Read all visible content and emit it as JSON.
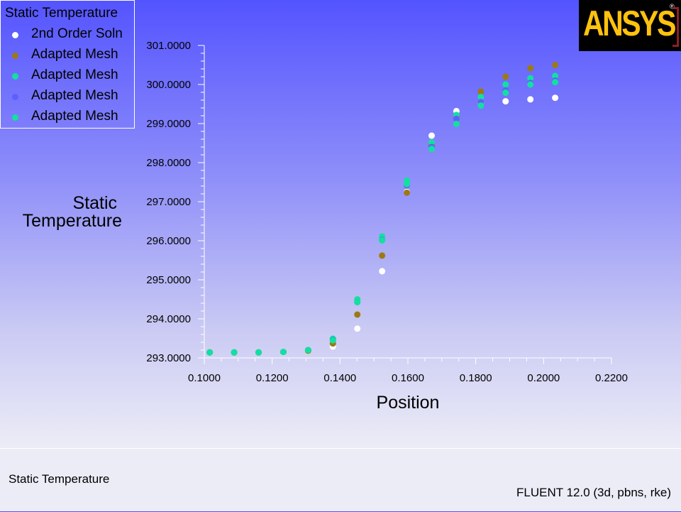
{
  "legend": {
    "title": "Static Temperature",
    "items": [
      {
        "label": "2nd Order Soln",
        "color": "#ffffff"
      },
      {
        "label": "Adapted Mesh",
        "color": "#9c7a12"
      },
      {
        "label": "Adapted Mesh",
        "color": "#12e0a0"
      },
      {
        "label": "Adapted Mesh",
        "color": "#5c60ff"
      },
      {
        "label": "Adapted Mesh",
        "color": "#12e0a0"
      }
    ]
  },
  "logo": {
    "text": "ANSYS",
    "mark": "®"
  },
  "footer": {
    "left_text": "Static Temperature",
    "right_text": "FLUENT 12.0 (3d, pbns, rke)"
  },
  "chart_data": {
    "type": "scatter",
    "xlabel": "Position",
    "ylabel": [
      "Static",
      "Temperature"
    ],
    "xlim": [
      0.1,
      0.22
    ],
    "ylim": [
      293.0,
      301.0
    ],
    "xticks": [
      "0.1000",
      "0.1200",
      "0.1400",
      "0.1600",
      "0.1800",
      "0.2000",
      "0.2200"
    ],
    "yticks": [
      "293.0000",
      "294.0000",
      "295.0000",
      "296.0000",
      "297.0000",
      "298.0000",
      "299.0000",
      "300.0000",
      "301.0000"
    ],
    "grid": false,
    "series": [
      {
        "name": "2nd Order Soln",
        "color": "#ffffff",
        "x": [
          0.1016,
          0.1088,
          0.116,
          0.1233,
          0.1306,
          0.1379,
          0.1451,
          0.1524,
          0.1597,
          0.167,
          0.1743,
          0.1815,
          0.1888,
          0.1961,
          0.2034
        ],
        "y": [
          293.14,
          293.14,
          293.14,
          293.14,
          293.17,
          293.29,
          293.75,
          295.22,
          297.25,
          298.69,
          299.32,
          299.54,
          299.57,
          299.62,
          299.66
        ]
      },
      {
        "name": "Adapted Mesh",
        "color": "#9c7a12",
        "x": [
          0.1016,
          0.1088,
          0.116,
          0.1233,
          0.1306,
          0.1379,
          0.1451,
          0.1524,
          0.1597,
          0.167,
          0.1743,
          0.1815,
          0.1888,
          0.1961,
          0.2034
        ],
        "y": [
          293.14,
          293.14,
          293.14,
          293.15,
          293.18,
          293.37,
          294.11,
          295.62,
          297.23,
          298.45,
          299.19,
          299.82,
          300.2,
          300.42,
          300.5
        ]
      },
      {
        "name": "Adapted Mesh",
        "color": "#12e0a0",
        "x": [
          0.1016,
          0.1088,
          0.116,
          0.1233,
          0.1306,
          0.1379,
          0.1451,
          0.1524,
          0.1597,
          0.167,
          0.1743,
          0.1815,
          0.1888,
          0.1961,
          0.2034
        ],
        "y": [
          293.14,
          293.14,
          293.14,
          293.15,
          293.2,
          293.49,
          294.5,
          296.11,
          297.54,
          298.52,
          299.22,
          299.68,
          300.0,
          300.16,
          300.22
        ]
      },
      {
        "name": "Adapted Mesh",
        "color": "#5c60ff",
        "x": [
          0.1016,
          0.1088,
          0.116,
          0.1233,
          0.1306,
          0.1379,
          0.1451,
          0.1524,
          0.1597,
          0.167,
          0.1743,
          0.1815,
          0.1888,
          0.1961,
          0.2034
        ],
        "y": [
          293.14,
          293.14,
          293.14,
          293.15,
          293.2,
          293.46,
          294.43,
          296.02,
          297.42,
          298.4,
          299.12,
          299.55,
          299.85,
          300.04,
          300.1
        ]
      },
      {
        "name": "Adapted Mesh",
        "color": "#12e0a0",
        "x": [
          0.1016,
          0.1088,
          0.116,
          0.1233,
          0.1306,
          0.1379,
          0.1451,
          0.1524,
          0.1597,
          0.167,
          0.1743,
          0.1815,
          0.1888,
          0.1961,
          0.2034
        ],
        "y": [
          293.14,
          293.14,
          293.14,
          293.15,
          293.2,
          293.45,
          294.43,
          296.01,
          297.45,
          298.35,
          298.99,
          299.46,
          299.79,
          300.0,
          300.06
        ]
      }
    ]
  }
}
